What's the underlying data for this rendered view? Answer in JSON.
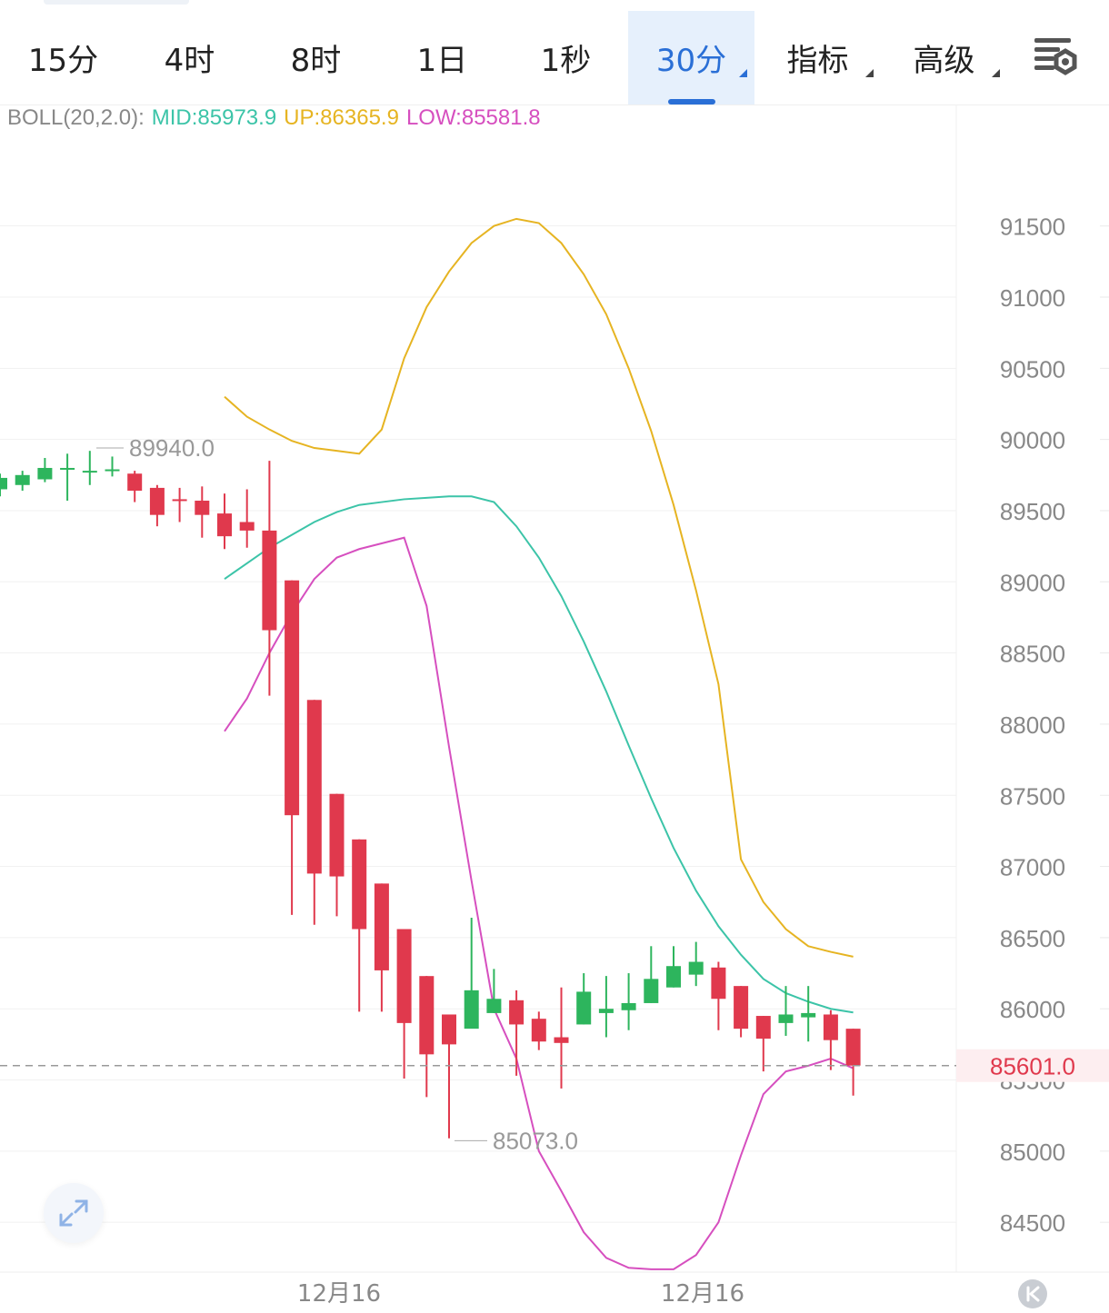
{
  "tabs": [
    {
      "label": "15分",
      "active": false,
      "dropdown": false
    },
    {
      "label": "4时",
      "active": false,
      "dropdown": false
    },
    {
      "label": "8时",
      "active": false,
      "dropdown": false
    },
    {
      "label": "1日",
      "active": false,
      "dropdown": false
    },
    {
      "label": "1秒",
      "active": false,
      "dropdown": false
    },
    {
      "label": "30分",
      "active": true,
      "dropdown": true
    },
    {
      "label": "指标",
      "active": false,
      "dropdown": true
    },
    {
      "label": "高级",
      "active": false,
      "dropdown": true
    }
  ],
  "boll": {
    "prefix": "BOLL(20,2.0):",
    "mid": "MID:85973.9",
    "up": "UP:86365.9",
    "low": "LOW:85581.8"
  },
  "colors": {
    "up_candle": "#2db55d",
    "down_candle": "#e0394d",
    "mid": "#3cc4a8",
    "upper": "#e6b422",
    "lower": "#d64fbf",
    "accent": "#2a6fd6",
    "price_tag": "#e0394d",
    "text_gray": "#888888"
  },
  "icons": {
    "settings": "settings-icon",
    "expand": "expand-arrows-icon",
    "back": "back-to-latest-icon"
  },
  "chart_data": {
    "type": "candlestick",
    "ylim": [
      84150,
      92130
    ],
    "y_ticks": [
      91500,
      91000,
      90500,
      90000,
      89500,
      89000,
      88500,
      88000,
      87500,
      87000,
      86500,
      86000,
      85500,
      85000,
      84500
    ],
    "x_labels": [
      "12月16",
      "12月16"
    ],
    "current_price": "85601.0",
    "high_marker": "89940.0",
    "low_marker": "85073.0",
    "candles": [
      [
        89650,
        89730,
        89600,
        89760
      ],
      [
        89680,
        89750,
        89640,
        89780
      ],
      [
        89720,
        89800,
        89700,
        89870
      ],
      [
        89800,
        89800,
        89570,
        89900
      ],
      [
        89770,
        89780,
        89680,
        89920
      ],
      [
        89780,
        89790,
        89740,
        89880
      ],
      [
        89760,
        89640,
        89560,
        89780
      ],
      [
        89660,
        89470,
        89390,
        89680
      ],
      [
        89580,
        89570,
        89420,
        89660
      ],
      [
        89570,
        89470,
        89310,
        89670
      ],
      [
        89480,
        89320,
        89230,
        89620
      ],
      [
        89420,
        89360,
        89240,
        89650
      ],
      [
        89360,
        88660,
        88200,
        89850
      ],
      [
        89010,
        87360,
        86660,
        89010
      ],
      [
        88170,
        86950,
        86590,
        88170
      ],
      [
        87510,
        86930,
        86650,
        87510
      ],
      [
        87190,
        86560,
        85980,
        87190
      ],
      [
        86880,
        86270,
        85980,
        86880
      ],
      [
        86560,
        85900,
        85510,
        86560
      ],
      [
        86230,
        85680,
        85380,
        86230
      ],
      [
        85960,
        85750,
        85090,
        85960
      ],
      [
        85860,
        86130,
        85870,
        86640
      ],
      [
        85970,
        86070,
        85970,
        86280
      ],
      [
        86060,
        85890,
        85530,
        86130
      ],
      [
        85930,
        85770,
        85710,
        85980
      ],
      [
        85800,
        85760,
        85440,
        86150
      ],
      [
        85890,
        86120,
        85890,
        86250
      ],
      [
        85970,
        86000,
        85800,
        86230
      ],
      [
        85990,
        86040,
        85850,
        86250
      ],
      [
        86040,
        86210,
        86040,
        86440
      ],
      [
        86150,
        86300,
        86150,
        86440
      ],
      [
        86240,
        86330,
        86160,
        86470
      ],
      [
        86290,
        86070,
        85850,
        86330
      ],
      [
        86160,
        85860,
        85800,
        86160
      ],
      [
        85950,
        85790,
        85560,
        85950
      ],
      [
        85900,
        85960,
        85810,
        86160
      ],
      [
        85940,
        85970,
        85770,
        86160
      ],
      [
        85960,
        85780,
        85570,
        85990
      ],
      [
        85860,
        85601,
        85390,
        85860
      ]
    ],
    "mid": [
      89020,
      89130,
      89240,
      89330,
      89420,
      89490,
      89540,
      89560,
      89580,
      89590,
      89600,
      89600,
      89560,
      89390,
      89170,
      88900,
      88580,
      88230,
      87850,
      87480,
      87130,
      86830,
      86580,
      86380,
      86210,
      86110,
      86050,
      86000,
      85974
    ],
    "upper": [
      90300,
      90160,
      90070,
      89990,
      89940,
      89920,
      89900,
      90070,
      90570,
      90930,
      91180,
      91380,
      91500,
      91550,
      91520,
      91380,
      91160,
      90880,
      90500,
      90060,
      89540,
      88940,
      88280,
      87050,
      86750,
      86560,
      86440,
      86400,
      86366
    ],
    "lower": [
      87950,
      88180,
      88500,
      88780,
      89020,
      89170,
      89230,
      89270,
      89310,
      88830,
      87840,
      86900,
      86000,
      85650,
      85000,
      84720,
      84430,
      84250,
      84180,
      84170,
      84170,
      84270,
      84500,
      84970,
      85400,
      85560,
      85600,
      85650,
      85582
    ]
  }
}
